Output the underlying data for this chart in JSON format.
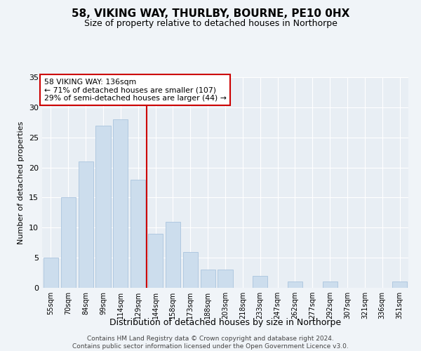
{
  "title": "58, VIKING WAY, THURLBY, BOURNE, PE10 0HX",
  "subtitle": "Size of property relative to detached houses in Northorpe",
  "xlabel": "Distribution of detached houses by size in Northorpe",
  "ylabel": "Number of detached properties",
  "categories": [
    "55sqm",
    "70sqm",
    "84sqm",
    "99sqm",
    "114sqm",
    "129sqm",
    "144sqm",
    "158sqm",
    "173sqm",
    "188sqm",
    "203sqm",
    "218sqm",
    "233sqm",
    "247sqm",
    "262sqm",
    "277sqm",
    "292sqm",
    "307sqm",
    "321sqm",
    "336sqm",
    "351sqm"
  ],
  "values": [
    5,
    15,
    21,
    27,
    28,
    18,
    9,
    11,
    6,
    3,
    3,
    0,
    2,
    0,
    1,
    0,
    1,
    0,
    0,
    0,
    1
  ],
  "bar_color": "#ccdded",
  "bar_edge_color": "#aac4de",
  "ylim": [
    0,
    35
  ],
  "yticks": [
    0,
    5,
    10,
    15,
    20,
    25,
    30,
    35
  ],
  "property_label": "58 VIKING WAY: 136sqm",
  "annotation_line1": "← 71% of detached houses are smaller (107)",
  "annotation_line2": "29% of semi-detached houses are larger (44) →",
  "vline_color": "#cc0000",
  "annotation_box_color": "#cc0000",
  "background_color": "#f0f4f8",
  "plot_bg_color": "#e8eef4",
  "grid_color": "#ffffff",
  "footer_line1": "Contains HM Land Registry data © Crown copyright and database right 2024.",
  "footer_line2": "Contains public sector information licensed under the Open Government Licence v3.0.",
  "vline_x_index": 5.5
}
